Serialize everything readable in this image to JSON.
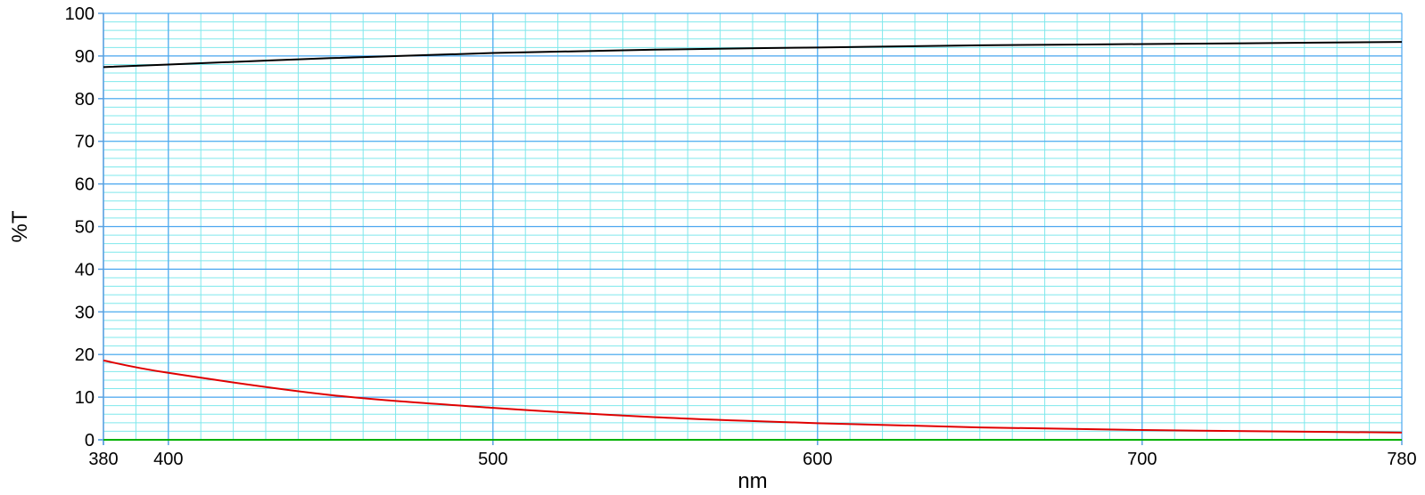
{
  "chart_data": {
    "type": "line",
    "title": "",
    "xlabel": "nm",
    "ylabel": "%T",
    "xlim": [
      380,
      780
    ],
    "ylim": [
      0,
      100
    ],
    "x_ticks": [
      380,
      400,
      500,
      600,
      700,
      780
    ],
    "y_ticks": [
      0,
      10,
      20,
      30,
      40,
      50,
      60,
      70,
      80,
      90,
      100
    ],
    "grid": true,
    "minor_grid": true,
    "legend": "none",
    "colors": {
      "major_grid": "#4da6f0",
      "minor_grid": "#7fe8ec",
      "axis": "#5aa0e0"
    },
    "series": [
      {
        "color": "#000000",
        "x": [
          380,
          400,
          450,
          500,
          550,
          600,
          650,
          700,
          750,
          780
        ],
        "values": [
          87.4,
          88.0,
          89.5,
          90.7,
          91.5,
          92.0,
          92.5,
          92.8,
          93.1,
          93.3
        ]
      },
      {
        "color": "#e00000",
        "x": [
          380,
          400,
          450,
          500,
          550,
          600,
          650,
          700,
          750,
          780
        ],
        "values": [
          18.6,
          15.7,
          10.5,
          7.5,
          5.3,
          3.9,
          2.9,
          2.3,
          1.9,
          1.7
        ]
      },
      {
        "color": "#00b000",
        "x": [
          380,
          780
        ],
        "values": [
          0,
          0
        ]
      }
    ]
  }
}
